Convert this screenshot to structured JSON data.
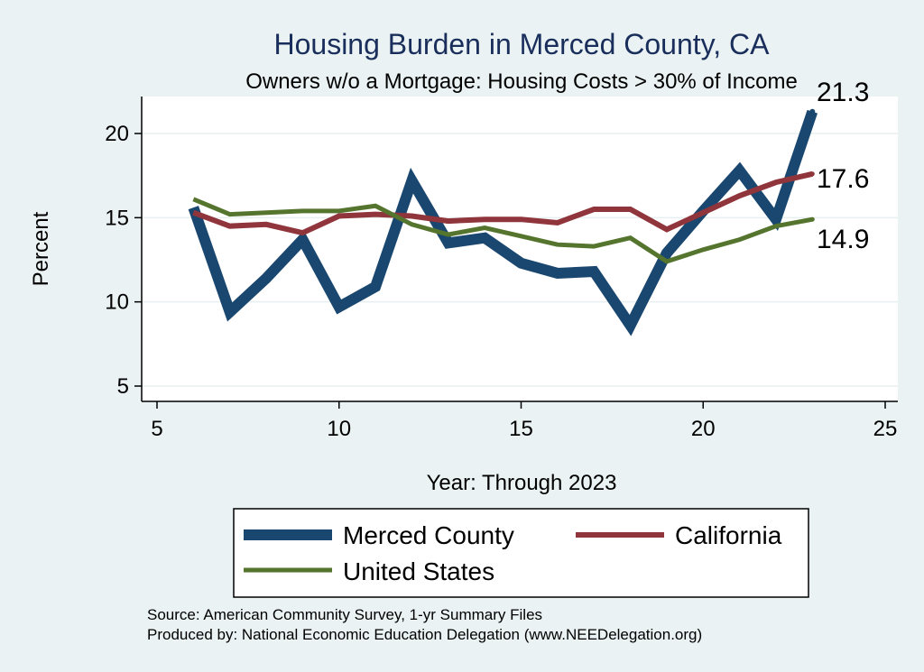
{
  "chart_data": {
    "type": "line",
    "title": "Housing Burden in Merced County, CA",
    "subtitle": "Owners w/o a Mortgage: Housing Costs > 30% of Income",
    "xlabel": "Year: Through 2023",
    "ylabel": "Percent",
    "xlim": [
      5,
      25
    ],
    "ylim": [
      5,
      22
    ],
    "xticks": [
      5,
      10,
      15,
      20,
      25
    ],
    "yticks": [
      5,
      10,
      15,
      20
    ],
    "grid": true,
    "legend_position": "bottom",
    "x": [
      6,
      7,
      8,
      9,
      10,
      11,
      12,
      13,
      14,
      15,
      16,
      17,
      18,
      19,
      20,
      21,
      22,
      23
    ],
    "series": [
      {
        "name": "Merced County",
        "color": "#1a476f",
        "values": [
          15.6,
          9.4,
          11.4,
          13.7,
          9.7,
          10.9,
          17.2,
          13.5,
          13.8,
          12.3,
          11.7,
          11.8,
          8.6,
          12.9,
          15.4,
          17.8,
          14.9,
          21.3
        ],
        "end_label": "21.3"
      },
      {
        "name": "California",
        "color": "#90353b",
        "values": [
          15.3,
          14.5,
          14.6,
          14.1,
          15.1,
          15.2,
          15.1,
          14.8,
          14.9,
          14.9,
          14.7,
          15.5,
          15.5,
          14.3,
          15.3,
          16.3,
          17.1,
          17.6
        ],
        "end_label": "17.6"
      },
      {
        "name": "United States",
        "color": "#55752f",
        "values": [
          16.1,
          15.2,
          15.3,
          15.4,
          15.4,
          15.7,
          14.6,
          14.0,
          14.4,
          13.9,
          13.4,
          13.3,
          13.8,
          12.4,
          13.1,
          13.7,
          14.5,
          14.9
        ],
        "end_label": "14.9"
      }
    ],
    "notes": [
      "Source: American Community Survey, 1-yr Summary Files",
      "Produced by: National Economic Education Delegation (www.NEEDelegation.org)"
    ]
  }
}
